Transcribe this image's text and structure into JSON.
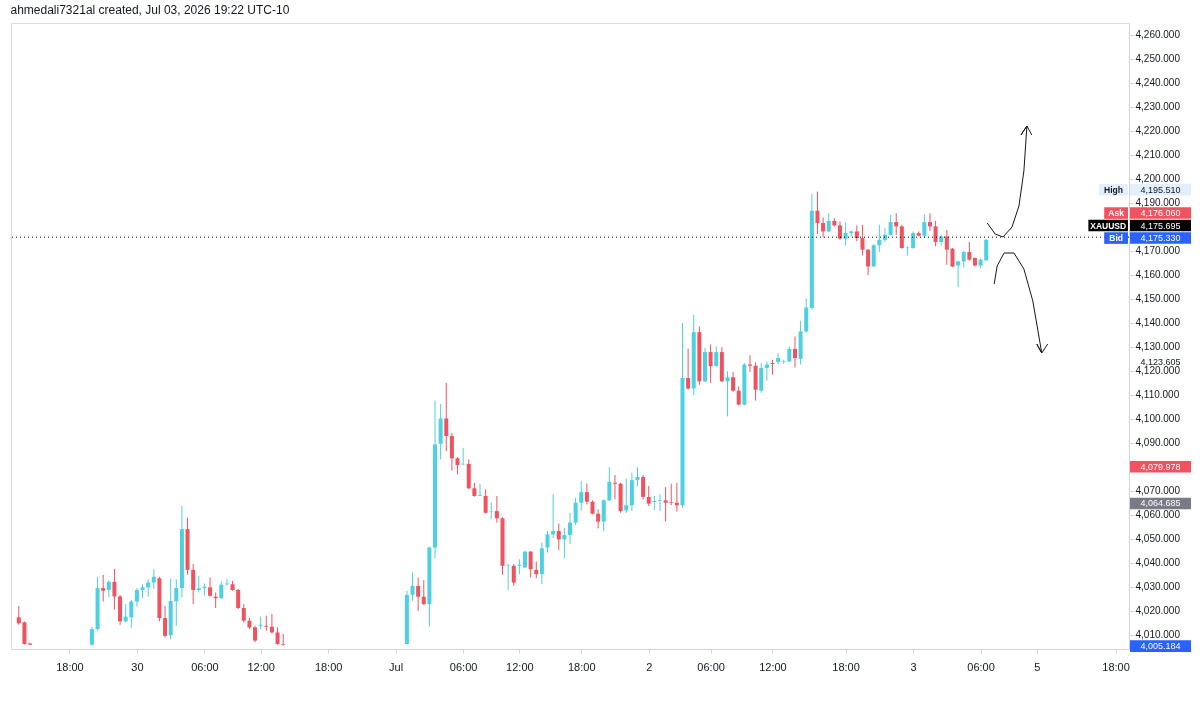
{
  "chart_data": {
    "type": "candlestick",
    "title": "ahmedali7321al created, Jul 03, 2026 19:22 UTC-10",
    "categories": [
      null,
      null,
      null,
      null,
      null,
      null,
      null,
      null,
      null,
      "18:00",
      null,
      null,
      null,
      null,
      null,
      null,
      null,
      null,
      null,
      null,
      null,
      "30",
      null,
      null,
      null,
      null,
      null,
      null,
      null,
      null,
      null,
      null,
      null,
      "06:00",
      null,
      null,
      null,
      null,
      null,
      null,
      null,
      null,
      null,
      "12:00",
      null,
      null,
      null,
      null,
      null,
      null,
      null,
      null,
      null,
      null,
      null,
      "18:00",
      null,
      null,
      null,
      null,
      null,
      null,
      null,
      null,
      null,
      null,
      null,
      "Jul",
      null,
      null,
      null,
      null,
      null,
      null,
      null,
      null,
      null,
      null,
      null,
      "06:00",
      null,
      null,
      null,
      null,
      null,
      null,
      null,
      null,
      null,
      "12:00",
      null,
      null,
      null,
      null,
      null,
      null,
      null,
      null,
      null,
      null,
      "18:00",
      null,
      null,
      null,
      null,
      null,
      null,
      null,
      null,
      null,
      null,
      null,
      "2",
      null,
      null,
      null,
      null,
      null,
      null,
      null,
      null,
      null,
      null,
      "06:00",
      null,
      null,
      null,
      null,
      null,
      null,
      null,
      null,
      null,
      null,
      "12:00",
      null,
      null,
      null,
      null,
      null,
      null,
      null,
      null,
      null,
      null,
      null,
      null,
      "18:00",
      null,
      null,
      null,
      null,
      null,
      null,
      null,
      null,
      null,
      null,
      null,
      "3",
      null,
      null,
      null,
      null,
      null,
      null,
      null,
      null,
      null,
      null,
      null,
      "06:00",
      null,
      null,
      null,
      null,
      null,
      null,
      null,
      null,
      null,
      "5",
      null,
      null,
      null,
      null,
      null,
      null,
      null,
      null,
      null,
      null,
      null,
      null,
      null,
      "18:00",
      null
    ],
    "ohlc": [
      [
        4017.2,
        4022.0,
        4014.1,
        4014.7
      ],
      [
        4015.1,
        4015.5,
        4005.8,
        4006.1
      ],
      [
        4006.3,
        4006.7,
        4005.6,
        4005.8
      ],
      null,
      null,
      null,
      null,
      null,
      null,
      null,
      null,
      null,
      null,
      [
        4005.8,
        4013.3,
        4005.4,
        4012.3
      ],
      [
        4012.3,
        4034.1,
        4011.6,
        4029.4
      ],
      [
        4029.4,
        4034.9,
        4023.8,
        4028.3
      ],
      [
        4028.6,
        4032.7,
        4025.5,
        4032.0
      ],
      [
        4032.0,
        4037.4,
        4020.4,
        4025.9
      ],
      [
        4025.9,
        4026.5,
        4014.1,
        4015.5
      ],
      [
        4015.5,
        4022.7,
        4015.1,
        4017.5
      ],
      [
        4017.2,
        4024.4,
        4012.7,
        4023.8
      ],
      [
        4023.8,
        4029.4,
        4021.6,
        4028.6
      ],
      [
        4028.6,
        4031.0,
        4025.1,
        4029.7
      ],
      [
        4029.7,
        4033.1,
        4025.8,
        4031.7
      ],
      [
        4031.7,
        4037.3,
        4029.0,
        4034.1
      ],
      [
        4033.5,
        4034.1,
        4015.5,
        4016.9
      ],
      [
        4016.9,
        4022.0,
        4008.8,
        4009.5
      ],
      [
        4009.7,
        4033.4,
        4008.0,
        4024.0
      ],
      [
        4023.9,
        4033.1,
        4013.7,
        4029.4
      ],
      [
        4029.4,
        4063.7,
        4025.5,
        4054.0
      ],
      [
        4054.0,
        4058.8,
        4035.0,
        4037.0
      ],
      [
        4037.0,
        4039.4,
        4022.7,
        4028.6
      ],
      [
        4028.6,
        4034.5,
        4027.6,
        4029.3
      ],
      [
        4029.4,
        4031.3,
        4026.2,
        4029.9
      ],
      [
        4029.7,
        4033.8,
        4025.8,
        4026.2
      ],
      [
        4025.8,
        4027.6,
        4021.1,
        4025.2
      ],
      [
        4025.2,
        4032.2,
        4024.8,
        4030.8
      ],
      [
        4031.0,
        4033.1,
        4030.4,
        4031.3
      ],
      [
        4031.0,
        4032.4,
        4028.3,
        4028.6
      ],
      [
        4028.6,
        4029.0,
        4020.7,
        4021.1
      ],
      [
        4021.1,
        4022.7,
        4015.1,
        4015.8
      ],
      [
        4015.8,
        4016.9,
        4012.3,
        4013.0
      ],
      [
        4013.0,
        4013.7,
        4006.8,
        4007.5
      ],
      [
        4013.7,
        4017.5,
        4012.3,
        4014.1
      ],
      [
        4013.7,
        4017.9,
        4011.6,
        4013.3
      ],
      [
        4013.3,
        4018.6,
        4010.5,
        4010.9
      ],
      [
        4010.9,
        4013.0,
        4005.8,
        4006.1
      ],
      [
        4006.1,
        4010.3,
        4005.4,
        4005.8
      ],
      null,
      null,
      null,
      null,
      null,
      null,
      null,
      null,
      null,
      null,
      null,
      null,
      null,
      null,
      null,
      null,
      null,
      null,
      null,
      null,
      null,
      [
        4006.1,
        4028.3,
        4006.1,
        4026.6
      ],
      [
        4026.6,
        4035.9,
        4024.1,
        4030.3
      ],
      [
        4030.3,
        4033.8,
        4019.9,
        4025.8
      ],
      [
        4025.8,
        4032.7,
        4022.4,
        4022.7
      ],
      [
        4022.7,
        4046.6,
        4013.3,
        4046.3
      ],
      [
        4046.3,
        4107.6,
        4041.9,
        4089.3
      ],
      [
        4089.6,
        4106.2,
        4083.0,
        4100.1
      ],
      [
        4100.1,
        4114.9,
        4086.5,
        4092.8
      ],
      [
        4092.8,
        4094.1,
        4078.5,
        4083.5
      ],
      [
        4083.5,
        4084.0,
        4076.8,
        4080.7
      ],
      [
        4081.0,
        4087.9,
        4080.7,
        4081.2
      ],
      [
        4081.2,
        4083.0,
        4070.6,
        4071.0
      ],
      [
        4071.0,
        4073.3,
        4067.5,
        4067.8
      ],
      [
        4067.8,
        4072.9,
        4067.7,
        4068.1
      ],
      [
        4067.8,
        4070.6,
        4060.4,
        4060.8
      ],
      [
        4061.3,
        4065.0,
        4058.1,
        4061.5
      ],
      [
        4061.5,
        4067.8,
        4056.7,
        4058.5
      ],
      [
        4058.5,
        4059.0,
        4034.9,
        4038.7
      ],
      [
        4038.7,
        4039.6,
        4028.5,
        4038.9
      ],
      [
        4038.7,
        4039.4,
        4030.3,
        4031.7
      ],
      [
        4038.7,
        4041.4,
        4035.2,
        4039.1
      ],
      [
        4038.0,
        4044.9,
        4037.7,
        4044.6
      ],
      [
        4044.6,
        4044.9,
        4033.8,
        4037.3
      ],
      [
        4037.0,
        4040.5,
        4033.5,
        4035.2
      ],
      [
        4035.2,
        4048.4,
        4031.0,
        4046.0
      ],
      [
        4046.3,
        4053.2,
        4044.2,
        4051.8
      ],
      [
        4051.8,
        4068.7,
        4050.2,
        4053.2
      ],
      [
        4053.2,
        4056.3,
        4045.2,
        4049.7
      ],
      [
        4049.7,
        4054.6,
        4041.8,
        4051.5
      ],
      [
        4051.5,
        4060.8,
        4047.7,
        4056.7
      ],
      [
        4056.7,
        4067.1,
        4055.7,
        4065.0
      ],
      [
        4065.0,
        4074.0,
        4061.8,
        4069.4
      ],
      [
        4069.4,
        4073.0,
        4064.3,
        4065.4
      ],
      [
        4065.4,
        4066.0,
        4060.1,
        4060.4
      ],
      [
        4060.4,
        4062.2,
        4054.3,
        4057.1
      ],
      [
        4057.1,
        4066.4,
        4053.2,
        4066.0
      ],
      [
        4066.0,
        4079.8,
        4065.7,
        4073.7
      ],
      [
        4073.3,
        4076.5,
        4066.4,
        4072.9
      ],
      [
        4072.9,
        4073.3,
        4060.8,
        4061.5
      ],
      [
        4061.8,
        4075.1,
        4060.8,
        4063.9
      ],
      [
        4063.9,
        4077.5,
        4061.5,
        4074.4
      ],
      [
        4074.4,
        4079.8,
        4071.9,
        4075.7
      ],
      [
        4075.7,
        4076.5,
        4066.4,
        4067.4
      ],
      [
        4067.4,
        4072.0,
        4063.6,
        4064.6
      ],
      [
        4065.3,
        4067.8,
        4061.8,
        4065.7
      ],
      [
        4065.7,
        4068.5,
        4061.5,
        4066.0
      ],
      [
        4066.0,
        4071.5,
        4057.1,
        4065.0
      ],
      [
        4065.3,
        4072.9,
        4064.0,
        4065.0
      ],
      [
        4065.0,
        4073.3,
        4061.3,
        4063.9
      ],
      [
        4063.9,
        4139.9,
        4063.0,
        4117.0
      ],
      [
        4117.0,
        4129.2,
        4112.1,
        4112.6
      ],
      [
        4112.6,
        4143.4,
        4109.8,
        4136.1
      ],
      [
        4136.1,
        4138.5,
        4114.2,
        4115.6
      ],
      [
        4115.6,
        4129.5,
        4115.3,
        4127.8
      ],
      [
        4127.8,
        4130.9,
        4114.9,
        4121.9
      ],
      [
        4121.9,
        4130.2,
        4121.9,
        4127.8
      ],
      [
        4127.8,
        4129.8,
        4115.3,
        4115.6
      ],
      [
        4115.6,
        4119.8,
        4101.0,
        4117.3
      ],
      [
        4117.3,
        4119.5,
        4111.2,
        4111.7
      ],
      [
        4111.7,
        4113.5,
        4105.6,
        4105.9
      ],
      [
        4105.9,
        4123.2,
        4105.6,
        4122.6
      ],
      [
        4122.6,
        4126.4,
        4119.5,
        4122.1
      ],
      [
        4122.1,
        4123.5,
        4107.6,
        4112.1
      ],
      [
        4111.7,
        4123.2,
        4110.8,
        4121.2
      ],
      [
        4121.2,
        4123.9,
        4115.9,
        4122.6
      ],
      [
        4123.2,
        4124.6,
        4118.4,
        4122.8
      ],
      [
        4123.7,
        4127.4,
        4122.8,
        4125.3
      ],
      [
        4123.7,
        4124.6,
        4122.8,
        4123.9
      ],
      [
        4123.9,
        4130.2,
        4123.7,
        4129.1
      ],
      [
        4129.1,
        4134.3,
        4121.4,
        4125.3
      ],
      [
        4125.0,
        4140.9,
        4122.6,
        4136.4
      ],
      [
        4136.4,
        4150.1,
        4135.9,
        4146.4
      ],
      [
        4146.2,
        4193.6,
        4145.5,
        4186.7
      ],
      [
        4186.7,
        4194.7,
        4177.0,
        4181.6
      ],
      [
        4181.6,
        4183.9,
        4175.6,
        4178.1
      ],
      [
        4178.1,
        4185.7,
        4177.8,
        4182.5
      ],
      [
        4182.5,
        4183.6,
        4180.2,
        4180.6
      ],
      [
        4180.6,
        4182.3,
        4174.6,
        4175.1
      ],
      [
        4175.1,
        4182.0,
        4172.3,
        4177.4
      ],
      [
        4177.4,
        4178.4,
        4176.0,
        4178.1
      ],
      [
        4178.1,
        4180.6,
        4174.0,
        4175.3
      ],
      [
        4175.3,
        4180.9,
        4168.1,
        4170.5
      ],
      [
        4170.5,
        4170.7,
        4159.8,
        4163.5
      ],
      [
        4163.5,
        4172.8,
        4163.3,
        4172.3
      ],
      [
        4172.3,
        4180.9,
        4169.5,
        4174.6
      ],
      [
        4174.6,
        4179.5,
        4173.7,
        4176.7
      ],
      [
        4176.7,
        4185.0,
        4176.4,
        4182.0
      ],
      [
        4182.0,
        4185.7,
        4176.7,
        4180.2
      ],
      [
        4180.2,
        4180.9,
        4170.9,
        4171.2
      ],
      [
        4171.2,
        4171.9,
        4168.1,
        4171.4
      ],
      [
        4171.2,
        4178.1,
        4170.9,
        4177.4
      ],
      [
        4177.4,
        4178.1,
        4176.0,
        4176.3
      ],
      [
        4176.3,
        4185.3,
        4175.3,
        4182.0
      ],
      [
        4182.0,
        4185.7,
        4178.4,
        4180.2
      ],
      [
        4180.2,
        4182.5,
        4171.9,
        4173.7
      ],
      [
        4173.7,
        4176.7,
        4172.3,
        4176.0
      ],
      [
        4176.0,
        4178.8,
        4164.2,
        4170.5
      ],
      [
        4170.9,
        4171.2,
        4163.2,
        4163.5
      ],
      [
        4163.9,
        4165.9,
        4154.8,
        4165.6
      ],
      [
        4165.6,
        4170.0,
        4163.1,
        4169.5
      ],
      [
        4169.5,
        4173.7,
        4165.9,
        4166.3
      ],
      [
        4167.0,
        4167.3,
        4163.5,
        4163.9
      ],
      [
        4163.9,
        4166.7,
        4162.6,
        4166.3
      ],
      [
        4166.0,
        4174.9,
        4165.9,
        4174.6
      ],
      null,
      null,
      null,
      null,
      null,
      null,
      null,
      null,
      null,
      null,
      null,
      null,
      null,
      null,
      null,
      null,
      null,
      null,
      null,
      null,
      null,
      null,
      null,
      null
    ],
    "ylim": [
      4004,
      4265
    ],
    "yticks": [
      {
        "value": 4010,
        "label": "4,010.000"
      },
      {
        "value": 4020,
        "label": "4,020.000"
      },
      {
        "value": 4030,
        "label": "4,030.000"
      },
      {
        "value": 4040,
        "label": "4,040.000"
      },
      {
        "value": 4050,
        "label": "4,050.000"
      },
      {
        "value": 4060,
        "label": "4,060.000"
      },
      {
        "value": 4070,
        "label": "4,070.000"
      },
      {
        "value": 4080,
        "label": null
      },
      {
        "value": 4090,
        "label": "4,090.000"
      },
      {
        "value": 4100,
        "label": "4,100.000"
      },
      {
        "value": 4110,
        "label": "4,110.000"
      },
      {
        "value": 4120,
        "label": "4,120.000"
      },
      {
        "value": 4130,
        "label": "4,130.000"
      },
      {
        "value": 4140,
        "label": "4,140.000"
      },
      {
        "value": 4150,
        "label": "4,150.000"
      },
      {
        "value": 4160,
        "label": "4,160.000"
      },
      {
        "value": 4170,
        "label": "4,170.000"
      },
      {
        "value": 4180,
        "label": null
      },
      {
        "value": 4190,
        "label": "4,190.000"
      },
      {
        "value": 4200,
        "label": "4,200.000"
      },
      {
        "value": 4210,
        "label": "4,210.000"
      },
      {
        "value": 4220,
        "label": "4,220.000"
      },
      {
        "value": 4230,
        "label": "4,230.000"
      },
      {
        "value": 4240,
        "label": "4,240.000"
      },
      {
        "value": 4250,
        "label": "4,250.000"
      },
      {
        "value": 4260,
        "label": "4,260.000"
      }
    ],
    "ref_lines": [
      {
        "axis": "y",
        "value": 4175.695,
        "label": "XAUUSD",
        "color": "#000000",
        "line_style": "dotted"
      }
    ],
    "annotations": [
      "High",
      "4,195.510",
      "Ask",
      "4,176.060",
      "4,175.695",
      "Bid",
      "4,175.330",
      "4,123.605",
      "4,079.978",
      "4,064.685",
      "4,005.184"
    ],
    "grid": false,
    "legend": false
  }
}
